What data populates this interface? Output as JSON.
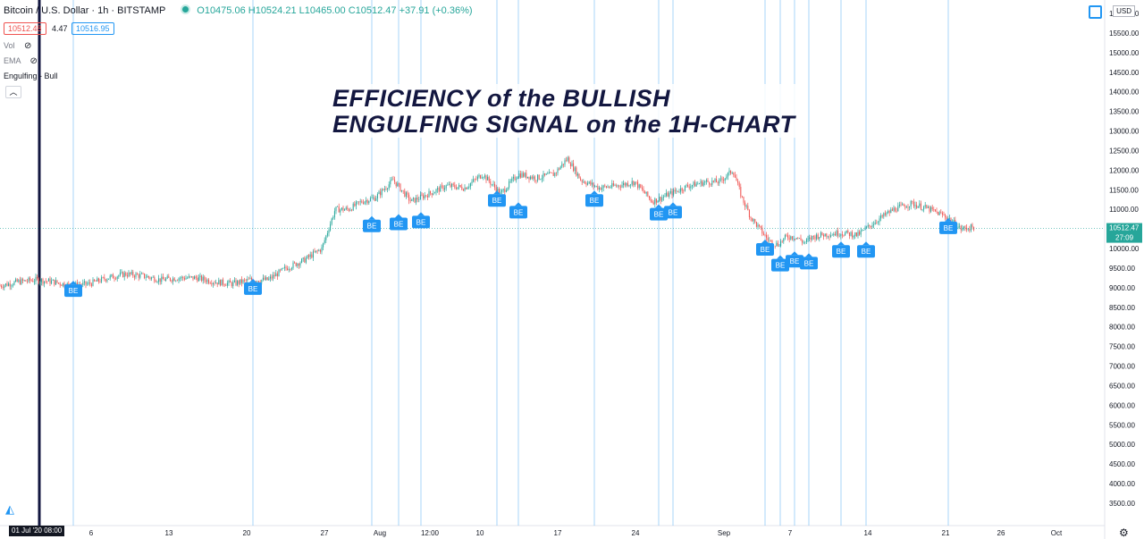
{
  "header": {
    "symbol": "Bitcoin / U.S. Dollar · 1h · BITSTAMP",
    "ohlc": "O10475.06  H10524.21  L10465.00  C10512.47  +37.91 (+0.36%)",
    "bid": "10512.48",
    "spread": "4.47",
    "ask": "10516.95"
  },
  "indicators": [
    {
      "label": "Vol"
    },
    {
      "label": "EMA"
    },
    {
      "label": "Engulfing - Bull"
    }
  ],
  "overlay": {
    "line1": "EFFICIENCY of the BULLISH",
    "line2": "ENGULFING SIGNAL on the 1H-CHART"
  },
  "currency_button": "USD",
  "crosshair_date": "01 Jul '20  08:00",
  "price_label": "10512.47",
  "countdown": "27:09",
  "colors": {
    "up": "#26a69a",
    "down": "#ef5350",
    "signal": "#2196f3",
    "ink": "#131722"
  },
  "chart_data": {
    "type": "line",
    "x_tick_labels": [
      "6",
      "13",
      "20",
      "27",
      "Aug",
      "12:00",
      "10",
      "17",
      "24",
      "Sep",
      "7",
      "14",
      "21",
      "26",
      "Oct"
    ],
    "y_tick_labels": [
      "3500.00",
      "4000.00",
      "4500.00",
      "5000.00",
      "5500.00",
      "6000.00",
      "6500.00",
      "7000.00",
      "7500.00",
      "8000.00",
      "8500.00",
      "9000.00",
      "9500.00",
      "10000.00",
      "10500.00",
      "11000.00",
      "11500.00",
      "12000.00",
      "12500.00",
      "13000.00",
      "13500.00",
      "14000.00",
      "14500.00",
      "15000.00",
      "15500.00",
      "16000.00"
    ],
    "ylim": [
      3200,
      16000
    ],
    "series": [
      {
        "x": [
          0,
          20,
          40,
          60,
          80,
          100,
          120,
          140,
          160,
          180,
          200,
          220,
          240,
          260,
          280,
          300,
          320,
          340,
          360,
          375,
          390,
          405,
          420,
          440,
          460,
          480,
          500,
          520,
          540,
          560,
          580,
          600,
          620,
          635,
          650,
          670,
          690,
          710,
          730,
          750,
          770,
          790,
          805,
          820,
          830,
          840,
          850,
          860,
          870,
          880,
          890,
          900,
          910,
          920,
          940,
          960,
          980,
          1000,
          1020,
          1040,
          1060,
          1075,
          1090
        ],
        "values": [
          9050,
          9150,
          9200,
          9150,
          9050,
          9100,
          9250,
          9350,
          9300,
          9200,
          9250,
          9250,
          9150,
          9100,
          9200,
          9200,
          9500,
          9700,
          10000,
          11000,
          11000,
          11200,
          11300,
          11750,
          11200,
          11400,
          11600,
          11550,
          11900,
          11400,
          11900,
          11800,
          11900,
          12300,
          11750,
          11550,
          11600,
          11700,
          11200,
          11400,
          11600,
          11700,
          11700,
          12000,
          11300,
          10800,
          10500,
          10200,
          10100,
          10300,
          10300,
          10150,
          10300,
          10350,
          10400,
          10350,
          10700,
          11000,
          11150,
          11000,
          10800,
          10500,
          10550
        ]
      }
    ],
    "signals": [
      {
        "label": "BE",
        "x": 82,
        "y": 8950
      },
      {
        "label": "BE",
        "x": 283,
        "y": 9000
      },
      {
        "label": "BE",
        "x": 416,
        "y": 10600
      },
      {
        "label": "BE",
        "x": 446,
        "y": 10650
      },
      {
        "label": "BE",
        "x": 471,
        "y": 10700
      },
      {
        "label": "BE",
        "x": 556,
        "y": 11250
      },
      {
        "label": "BE",
        "x": 580,
        "y": 10950
      },
      {
        "label": "BE",
        "x": 665,
        "y": 11250
      },
      {
        "label": "BE",
        "x": 737,
        "y": 10900
      },
      {
        "label": "BE",
        "x": 753,
        "y": 10950
      },
      {
        "label": "BE",
        "x": 856,
        "y": 10000
      },
      {
        "label": "BE",
        "x": 873,
        "y": 9600
      },
      {
        "label": "BE",
        "x": 889,
        "y": 9700
      },
      {
        "label": "BE",
        "x": 905,
        "y": 9650
      },
      {
        "label": "BE",
        "x": 941,
        "y": 9950
      },
      {
        "label": "BE",
        "x": 969,
        "y": 9950
      },
      {
        "label": "BE",
        "x": 1061,
        "y": 10550
      }
    ]
  }
}
